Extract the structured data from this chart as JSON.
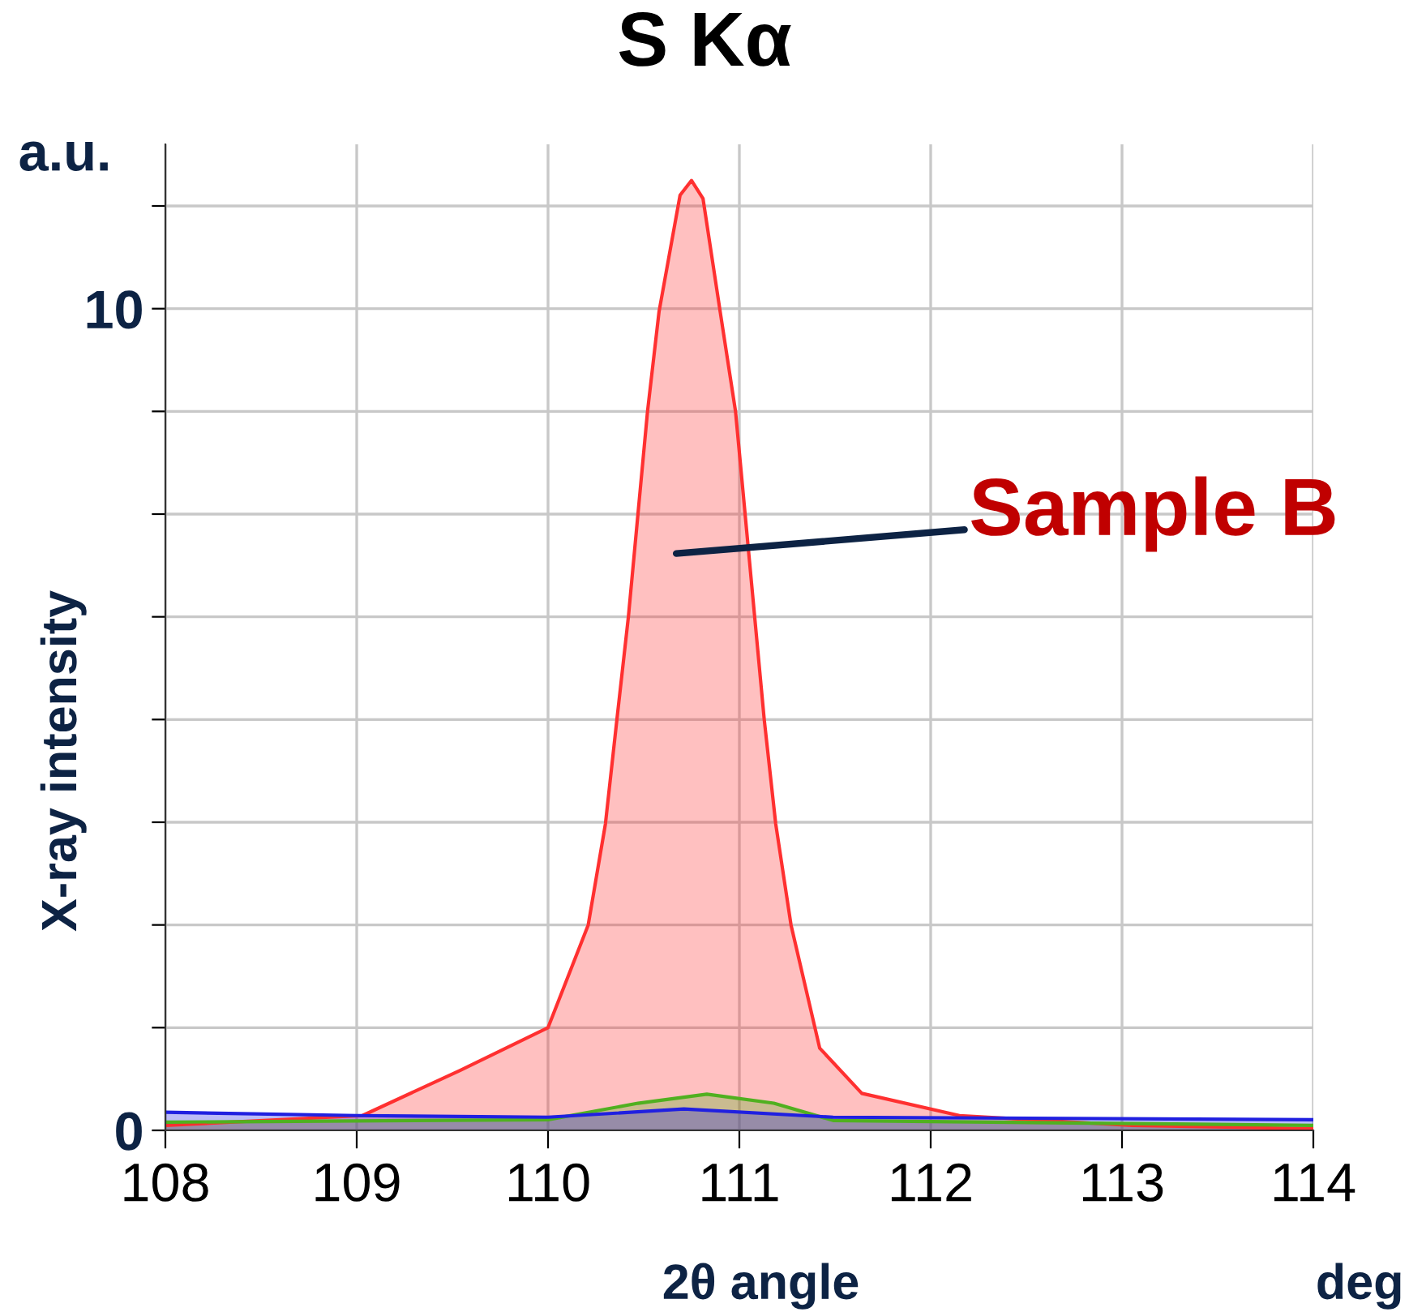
{
  "chart_data": {
    "type": "area",
    "title": "S Kα",
    "xlabel": "2θ angle",
    "ylabel": "X-ray intensity",
    "annotations": [
      "a.u.",
      "deg",
      "Sample B"
    ],
    "xlim": [
      108,
      114
    ],
    "ylim": [
      0,
      12
    ],
    "xticks": [
      108,
      109,
      110,
      111,
      112,
      113,
      114
    ],
    "yticks": [
      0,
      {
        "value": 1.25,
        "label": null
      },
      {
        "value": 2.5,
        "label": null
      },
      {
        "value": 3.75,
        "label": null
      },
      {
        "value": 5,
        "label": null
      },
      {
        "value": 6.25,
        "label": null
      },
      {
        "value": 7.5,
        "label": null
      },
      {
        "value": 8.75,
        "label": null
      },
      10,
      {
        "value": 11.25,
        "label": null
      }
    ],
    "grid": true,
    "series": [
      {
        "color": "#ff3030",
        "x": [
          108,
          109.03,
          109.54,
          110,
          110.21,
          110.3,
          110.36,
          110.42,
          110.47,
          110.52,
          110.58,
          110.69,
          110.75,
          110.81,
          110.9,
          110.98,
          111.03,
          111.08,
          111.13,
          111.19,
          111.27,
          111.42,
          111.64,
          112.15,
          113.05,
          114
        ],
        "values": [
          0.06,
          0.18,
          0.73,
          1.25,
          2.5,
          3.73,
          5.0,
          6.25,
          7.5,
          8.75,
          9.96,
          11.38,
          11.56,
          11.34,
          9.96,
          8.75,
          7.5,
          6.25,
          5.0,
          3.73,
          2.5,
          1.0,
          0.45,
          0.18,
          0.06,
          0.02
        ]
      },
      {
        "color": "#50b020",
        "x": [
          108,
          110,
          110.47,
          110.83,
          111.18,
          111.49,
          114
        ],
        "values": [
          0.1,
          0.13,
          0.33,
          0.44,
          0.33,
          0.12,
          0.06
        ]
      },
      {
        "color": "#2020e0",
        "x": [
          108,
          109,
          110,
          110.71,
          111.49,
          114
        ],
        "values": [
          0.22,
          0.18,
          0.16,
          0.26,
          0.16,
          0.13
        ]
      }
    ]
  }
}
